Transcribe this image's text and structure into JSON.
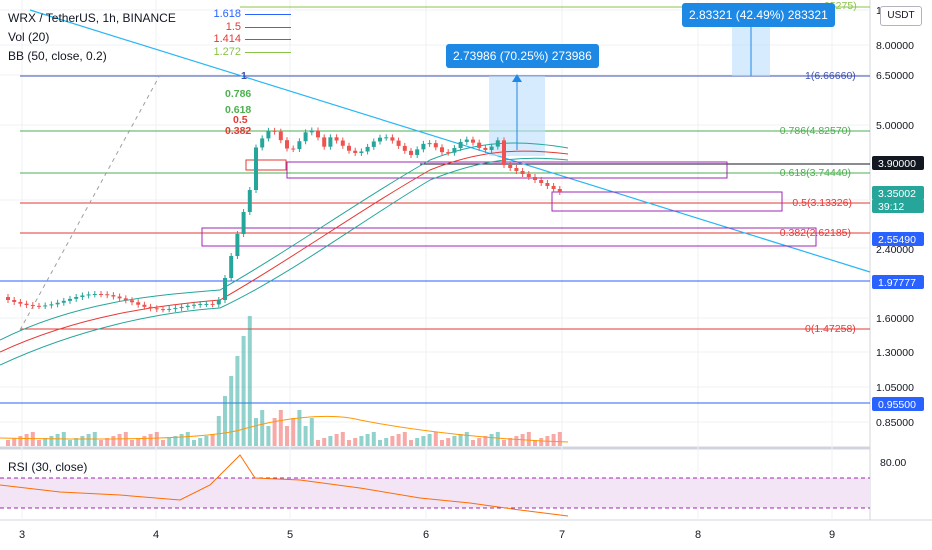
{
  "header": {
    "symbol_line": "WRX / TetherUS, 1h, BINANCE",
    "vol_line": "Vol (20)",
    "bb_line": "BB (50, close, 0.2)",
    "rsi_line": "RSI (30, close)",
    "currency_button": "USDT"
  },
  "fib_legend": [
    {
      "label": "1.618",
      "color": "#2962ff"
    },
    {
      "label": "1.5",
      "color": "#e53935"
    },
    {
      "label": "1.414",
      "color": "#e53935"
    },
    {
      "label": "1.272",
      "color": "#8bc34a"
    }
  ],
  "fib_labels_left": [
    {
      "label": "1",
      "color": "#3f51b5"
    },
    {
      "label": "0.786",
      "color": "#4caf50"
    },
    {
      "label": "0.618",
      "color": "#4caf50"
    },
    {
      "label": "0.5",
      "color": "#e53935"
    },
    {
      "label": "0.382",
      "color": "#e53935"
    }
  ],
  "fib_labels_right": [
    {
      "label": "1(6.66660)",
      "color": "#3f51b5"
    },
    {
      "label": "0.786(4.82570)",
      "color": "#4caf50"
    },
    {
      "label": "0.618(3.74440)",
      "color": "#4caf50"
    },
    {
      "label": "0.5(3.13326)",
      "color": "#e53935"
    },
    {
      "label": "0.382(2.62185)",
      "color": "#e53935"
    },
    {
      "label": "0(1.47258)",
      "color": "#e53935"
    },
    {
      "label": "05275)",
      "color": "#8bc34a"
    }
  ],
  "price_axis": {
    "ticks": [
      "10.00000",
      "8.00000",
      "6.50000",
      "5.00000",
      "2.40000",
      "1.60000",
      "1.30000",
      "1.05000",
      "0.85000"
    ],
    "rsi_tick": "80.00",
    "badges": [
      {
        "label": "3.90000",
        "color": "#131722"
      },
      {
        "label": "3.35002",
        "color": "#26a69a"
      },
      {
        "label": "39:12",
        "color": "#26a69a"
      },
      {
        "label": "2.55490",
        "color": "#2962ff"
      },
      {
        "label": "1.97777",
        "color": "#2962ff"
      },
      {
        "label": "0.95500",
        "color": "#2962ff"
      }
    ]
  },
  "time_axis": {
    "ticks": [
      "3",
      "4",
      "5",
      "6",
      "7",
      "8",
      "9"
    ]
  },
  "measure_labels": [
    {
      "label": "2.73986 (70.25%) 273986",
      "color": "#1e88e5"
    },
    {
      "label": "2.83321 (42.49%) 283321",
      "color": "#1e88e5"
    }
  ],
  "colors": {
    "up": "#26a69a",
    "down": "#ef5350",
    "bb": "#26a69a",
    "bb_basis": "#e53935",
    "trendline": "#29b6f6",
    "rsi": "#ff6d00",
    "rsi_band": "#9c27b0",
    "volume_ma": "#ff9800"
  }
}
